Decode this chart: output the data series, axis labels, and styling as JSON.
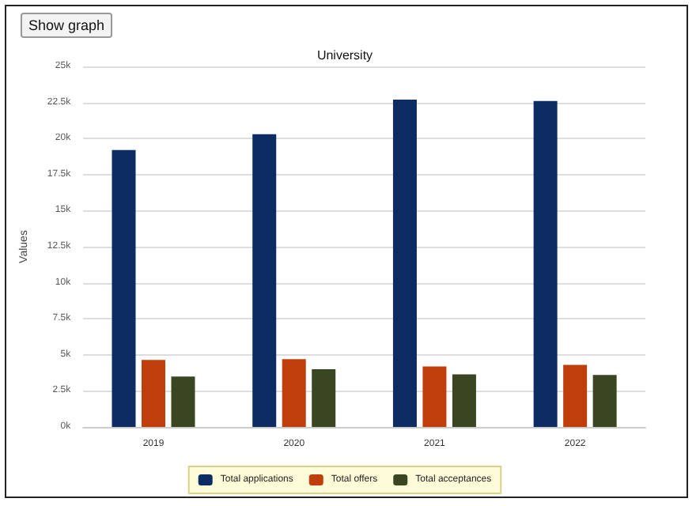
{
  "chart_data": {
    "type": "bar",
    "title": "University",
    "ylabel": "Values",
    "annotations": [
      "Show graph"
    ],
    "categories": [
      "2019",
      "2020",
      "2021",
      "2022"
    ],
    "series": [
      {
        "name": "Total applications",
        "color": "#0c2c63",
        "values": [
          19200,
          20300,
          22700,
          22600
        ]
      },
      {
        "name": "Total offers",
        "color": "#c03e0c",
        "values": [
          4650,
          4700,
          4200,
          4300
        ]
      },
      {
        "name": "Total acceptances",
        "color": "#3a4521",
        "values": [
          3500,
          4000,
          3650,
          3600
        ]
      }
    ],
    "ylim": [
      0,
      25000
    ],
    "yticks": [
      {
        "value": 0,
        "label": "0k"
      },
      {
        "value": 2500,
        "label": "2.5k"
      },
      {
        "value": 5000,
        "label": "5k"
      },
      {
        "value": 7500,
        "label": "7.5k"
      },
      {
        "value": 10000,
        "label": "10k"
      },
      {
        "value": 12500,
        "label": "12.5k"
      },
      {
        "value": 15000,
        "label": "15k"
      },
      {
        "value": 17500,
        "label": "17.5k"
      },
      {
        "value": 20000,
        "label": "20k"
      },
      {
        "value": 22500,
        "label": "22.5k"
      },
      {
        "value": 25000,
        "label": "25k"
      }
    ],
    "grid": "y",
    "legend": "bottom"
  }
}
